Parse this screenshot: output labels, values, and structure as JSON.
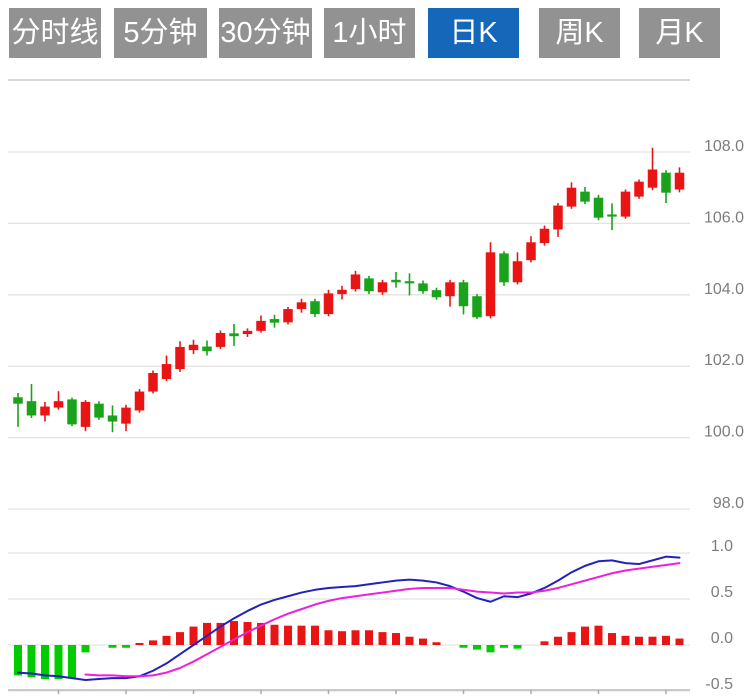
{
  "toolbar": {
    "buttons": [
      {
        "key": "minute-line",
        "label": "分时线",
        "active": false
      },
      {
        "key": "5min",
        "label": "5分钟",
        "active": false
      },
      {
        "key": "30min",
        "label": "30分钟",
        "active": false
      },
      {
        "key": "1hour",
        "label": "1小时",
        "active": false
      },
      {
        "key": "daily-k",
        "label": "日K",
        "active": true
      },
      {
        "key": "weekly-k",
        "label": "周K",
        "active": false
      },
      {
        "key": "monthly-k",
        "label": "月K",
        "active": false
      }
    ],
    "active_bg": "#1567ba",
    "inactive_bg": "#929292"
  },
  "chart_data": [
    {
      "type": "candlestick",
      "panel": "price",
      "legend_position": "none",
      "grid": true,
      "y_axis": {
        "side": "right",
        "ticks": [
          108.0,
          106.0,
          104.0,
          102.0,
          100.0,
          98.0
        ],
        "range": [
          97.2,
          110.0
        ]
      },
      "up_color": "#e91515",
      "down_color": "#1aa21a",
      "candles_ohlc": [
        [
          101.13,
          101.25,
          100.3,
          100.95
        ],
        [
          101.02,
          101.5,
          100.55,
          100.62
        ],
        [
          100.62,
          101.0,
          100.45,
          100.87
        ],
        [
          100.84,
          101.3,
          100.78,
          101.02
        ],
        [
          101.07,
          101.12,
          100.32,
          100.37
        ],
        [
          100.3,
          101.05,
          100.18,
          101.0
        ],
        [
          100.95,
          101.02,
          100.5,
          100.56
        ],
        [
          100.62,
          100.9,
          100.15,
          100.45
        ],
        [
          100.39,
          100.92,
          100.18,
          100.84
        ],
        [
          100.76,
          101.36,
          100.7,
          101.29
        ],
        [
          101.29,
          101.88,
          101.24,
          101.81
        ],
        [
          101.64,
          102.3,
          101.58,
          102.06
        ],
        [
          101.92,
          102.7,
          101.84,
          102.54
        ],
        [
          102.45,
          102.74,
          102.34,
          102.6
        ],
        [
          102.55,
          102.72,
          102.3,
          102.42
        ],
        [
          102.54,
          103.0,
          102.48,
          102.93
        ],
        [
          102.92,
          103.18,
          102.57,
          102.84
        ],
        [
          102.9,
          103.06,
          102.82,
          102.99
        ],
        [
          102.99,
          103.42,
          102.94,
          103.27
        ],
        [
          103.32,
          103.44,
          103.08,
          103.22
        ],
        [
          103.23,
          103.66,
          103.17,
          103.6
        ],
        [
          103.6,
          103.89,
          103.5,
          103.79
        ],
        [
          103.82,
          103.89,
          103.38,
          103.46
        ],
        [
          103.46,
          104.14,
          103.4,
          104.04
        ],
        [
          104.02,
          104.25,
          103.87,
          104.14
        ],
        [
          104.16,
          104.67,
          104.09,
          104.57
        ],
        [
          104.46,
          104.53,
          104.02,
          104.1
        ],
        [
          104.07,
          104.42,
          104.0,
          104.35
        ],
        [
          104.42,
          104.64,
          104.2,
          104.35
        ],
        [
          104.38,
          104.6,
          103.98,
          104.32
        ],
        [
          104.32,
          104.4,
          104.03,
          104.1
        ],
        [
          104.13,
          104.2,
          103.86,
          103.93
        ],
        [
          103.96,
          104.42,
          103.67,
          104.35
        ],
        [
          104.35,
          104.42,
          103.45,
          103.68
        ],
        [
          103.96,
          104.02,
          103.32,
          103.37
        ],
        [
          103.4,
          105.47,
          103.34,
          105.19
        ],
        [
          105.16,
          105.22,
          104.25,
          104.35
        ],
        [
          104.35,
          105.19,
          104.29,
          104.94
        ],
        [
          104.97,
          105.64,
          104.91,
          105.47
        ],
        [
          105.45,
          105.94,
          105.38,
          105.85
        ],
        [
          105.83,
          106.57,
          105.62,
          106.5
        ],
        [
          106.47,
          107.15,
          106.41,
          107.0
        ],
        [
          106.89,
          107.02,
          106.54,
          106.61
        ],
        [
          106.72,
          106.8,
          106.09,
          106.16
        ],
        [
          106.25,
          106.56,
          105.81,
          106.19
        ],
        [
          106.19,
          106.95,
          106.13,
          106.89
        ],
        [
          106.75,
          107.23,
          106.69,
          107.17
        ],
        [
          107.0,
          108.12,
          106.93,
          107.51
        ],
        [
          107.42,
          107.49,
          106.57,
          106.86
        ],
        [
          106.95,
          107.57,
          106.87,
          107.42
        ]
      ]
    },
    {
      "type": "macd",
      "panel": "indicator",
      "grid": true,
      "y_axis": {
        "side": "right",
        "ticks": [
          1.0,
          0.5,
          0.0,
          -0.5
        ],
        "range": [
          -0.55,
          1.0
        ]
      },
      "colors": {
        "hist_pos": "#e91515",
        "hist_neg": "#00cc00",
        "dif_line": "#2222bb",
        "dea_line": "#ef1fdb"
      },
      "histogram": [
        -0.33,
        -0.35,
        -0.37,
        -0.37,
        -0.36,
        -0.08,
        0,
        -0.03,
        -0.03,
        0.02,
        0.05,
        0.1,
        0.14,
        0.2,
        0.24,
        0.24,
        0.26,
        0.25,
        0.24,
        0.22,
        0.21,
        0.21,
        0.21,
        0.16,
        0.15,
        0.16,
        0.16,
        0.14,
        0.13,
        0.09,
        0.07,
        0.03,
        0,
        -0.03,
        -0.05,
        -0.08,
        -0.03,
        -0.04,
        0,
        0.04,
        0.09,
        0.14,
        0.2,
        0.21,
        0.13,
        0.1,
        0.09,
        0.09,
        0.1,
        0.07
      ],
      "dif": [
        -0.3,
        -0.31,
        -0.33,
        -0.34,
        -0.36,
        -0.38,
        -0.37,
        -0.36,
        -0.36,
        -0.34,
        -0.28,
        -0.2,
        -0.1,
        0.0,
        0.1,
        0.2,
        0.29,
        0.37,
        0.44,
        0.49,
        0.53,
        0.57,
        0.6,
        0.62,
        0.63,
        0.64,
        0.66,
        0.68,
        0.7,
        0.71,
        0.7,
        0.68,
        0.64,
        0.58,
        0.51,
        0.47,
        0.53,
        0.52,
        0.56,
        0.62,
        0.7,
        0.79,
        0.86,
        0.91,
        0.92,
        0.89,
        0.88,
        0.92,
        0.96,
        0.95
      ],
      "dea": [
        null,
        null,
        null,
        null,
        null,
        -0.32,
        -0.33,
        -0.33,
        -0.34,
        -0.34,
        -0.33,
        -0.3,
        -0.25,
        -0.18,
        -0.1,
        -0.02,
        0.06,
        0.14,
        0.21,
        0.28,
        0.34,
        0.39,
        0.44,
        0.48,
        0.51,
        0.53,
        0.55,
        0.57,
        0.59,
        0.61,
        0.62,
        0.62,
        0.62,
        0.6,
        0.58,
        0.57,
        0.56,
        0.57,
        0.57,
        0.59,
        0.62,
        0.66,
        0.7,
        0.74,
        0.78,
        0.81,
        0.83,
        0.85,
        0.87,
        0.89
      ]
    }
  ],
  "style": {
    "grid_color": "#e3e3e3",
    "border_color": "#d8d8d8",
    "axis_color": "#c9c9c9",
    "label_color": "#7d7d7d"
  }
}
